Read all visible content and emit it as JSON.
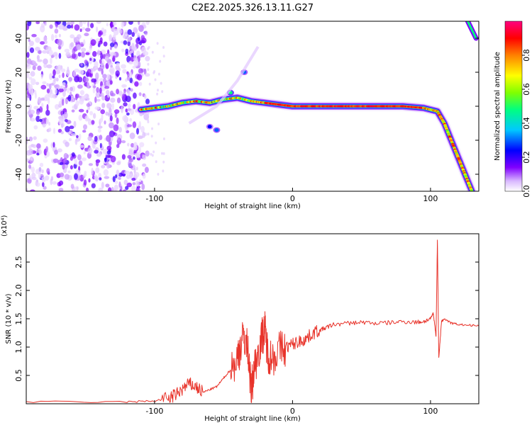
{
  "title": "C2E2.2025.326.13.11.G27",
  "colors": {
    "snr_line": "#e8332a",
    "axis": "#000000"
  },
  "chart_data": [
    {
      "type": "heatmap",
      "xlabel": "Height of straight line (km)",
      "ylabel": "Frequency (Hz)",
      "xlim": [
        -193,
        135
      ],
      "ylim": [
        -50,
        50
      ],
      "x_ticks": [
        -100,
        0,
        100
      ],
      "y_ticks": [
        -40,
        -20,
        0,
        20,
        40
      ],
      "colorbar": {
        "label": "Normalized spectral amplitude",
        "range": [
          0,
          1
        ],
        "ticks": [
          0.0,
          0.2,
          0.4,
          0.6,
          0.8
        ],
        "tick_labels": [
          "0.0",
          "0.2",
          "0.4",
          "0.6",
          "0.8"
        ],
        "colormap": [
          "#ffffff",
          "#d9b8ff",
          "#8000ff",
          "#0000ff",
          "#00c8ff",
          "#00ff80",
          "#80ff00",
          "#ffff00",
          "#ff8000",
          "#ff0000",
          "#ff0080"
        ]
      },
      "ridge": {
        "x": [
          -110,
          -100,
          -90,
          -80,
          -70,
          -60,
          -50,
          -40,
          -30,
          -20,
          -10,
          0,
          20,
          40,
          60,
          80,
          95,
          100,
          105,
          110,
          115,
          120,
          125,
          130
        ],
        "y": [
          -2,
          -1,
          0,
          2,
          3,
          2,
          4,
          5,
          3,
          2,
          1,
          0,
          0,
          0,
          0,
          0,
          -1,
          -2,
          -3,
          -10,
          -20,
          -30,
          -40,
          -50
        ]
      },
      "noise_region": {
        "x": [
          -193,
          -105
        ],
        "y": [
          -50,
          50
        ]
      },
      "blobs": [
        {
          "x": -35,
          "y": 20,
          "amp": 0.35
        },
        {
          "x": -60,
          "y": -12,
          "amp": 0.3
        },
        {
          "x": -55,
          "y": -14,
          "amp": 0.35
        },
        {
          "x": -45,
          "y": 8,
          "amp": 0.5
        }
      ],
      "upper_branch": {
        "x": [
          127,
          133
        ],
        "y": [
          50,
          40
        ]
      }
    },
    {
      "type": "line",
      "xlabel": "Height of straight line (km)",
      "ylabel": "SNR (10 * v/v)",
      "y_multiplier": "(x10⁴)",
      "xlim": [
        -193,
        135
      ],
      "ylim": [
        0,
        3.0
      ],
      "x_ticks": [
        -100,
        0,
        100
      ],
      "y_ticks": [
        0.5,
        1.0,
        1.5,
        2.0,
        2.5
      ],
      "y_tick_labels": [
        "0.5",
        "1.0",
        "1.5",
        "2.0",
        "2.5"
      ],
      "series": [
        {
          "x": [
            -193,
            -120,
            -100,
            -90,
            -85,
            -80,
            -75,
            -70,
            -65,
            -60,
            -55,
            -50,
            -45,
            -40,
            -38,
            -35,
            -32,
            -30,
            -28,
            -25,
            -22,
            -20,
            -18,
            -15,
            -10,
            -5,
            0,
            5,
            10,
            15,
            20,
            25,
            30,
            40,
            50,
            60,
            70,
            80,
            90,
            95,
            100,
            102,
            104,
            105,
            106,
            108,
            110,
            115,
            120,
            130,
            135
          ],
          "y": [
            0.03,
            0.03,
            0.05,
            0.1,
            0.15,
            0.25,
            0.35,
            0.3,
            0.2,
            0.25,
            0.3,
            0.45,
            0.6,
            0.8,
            1.0,
            1.2,
            0.9,
            0.2,
            0.6,
            0.9,
            1.2,
            1.3,
            0.9,
            0.8,
            0.95,
            1.0,
            1.05,
            1.1,
            1.15,
            1.25,
            1.3,
            1.35,
            1.4,
            1.42,
            1.44,
            1.42,
            1.43,
            1.45,
            1.44,
            1.45,
            1.5,
            1.6,
            1.2,
            2.9,
            0.8,
            1.45,
            1.5,
            1.42,
            1.4,
            1.38,
            1.38
          ]
        }
      ]
    }
  ]
}
